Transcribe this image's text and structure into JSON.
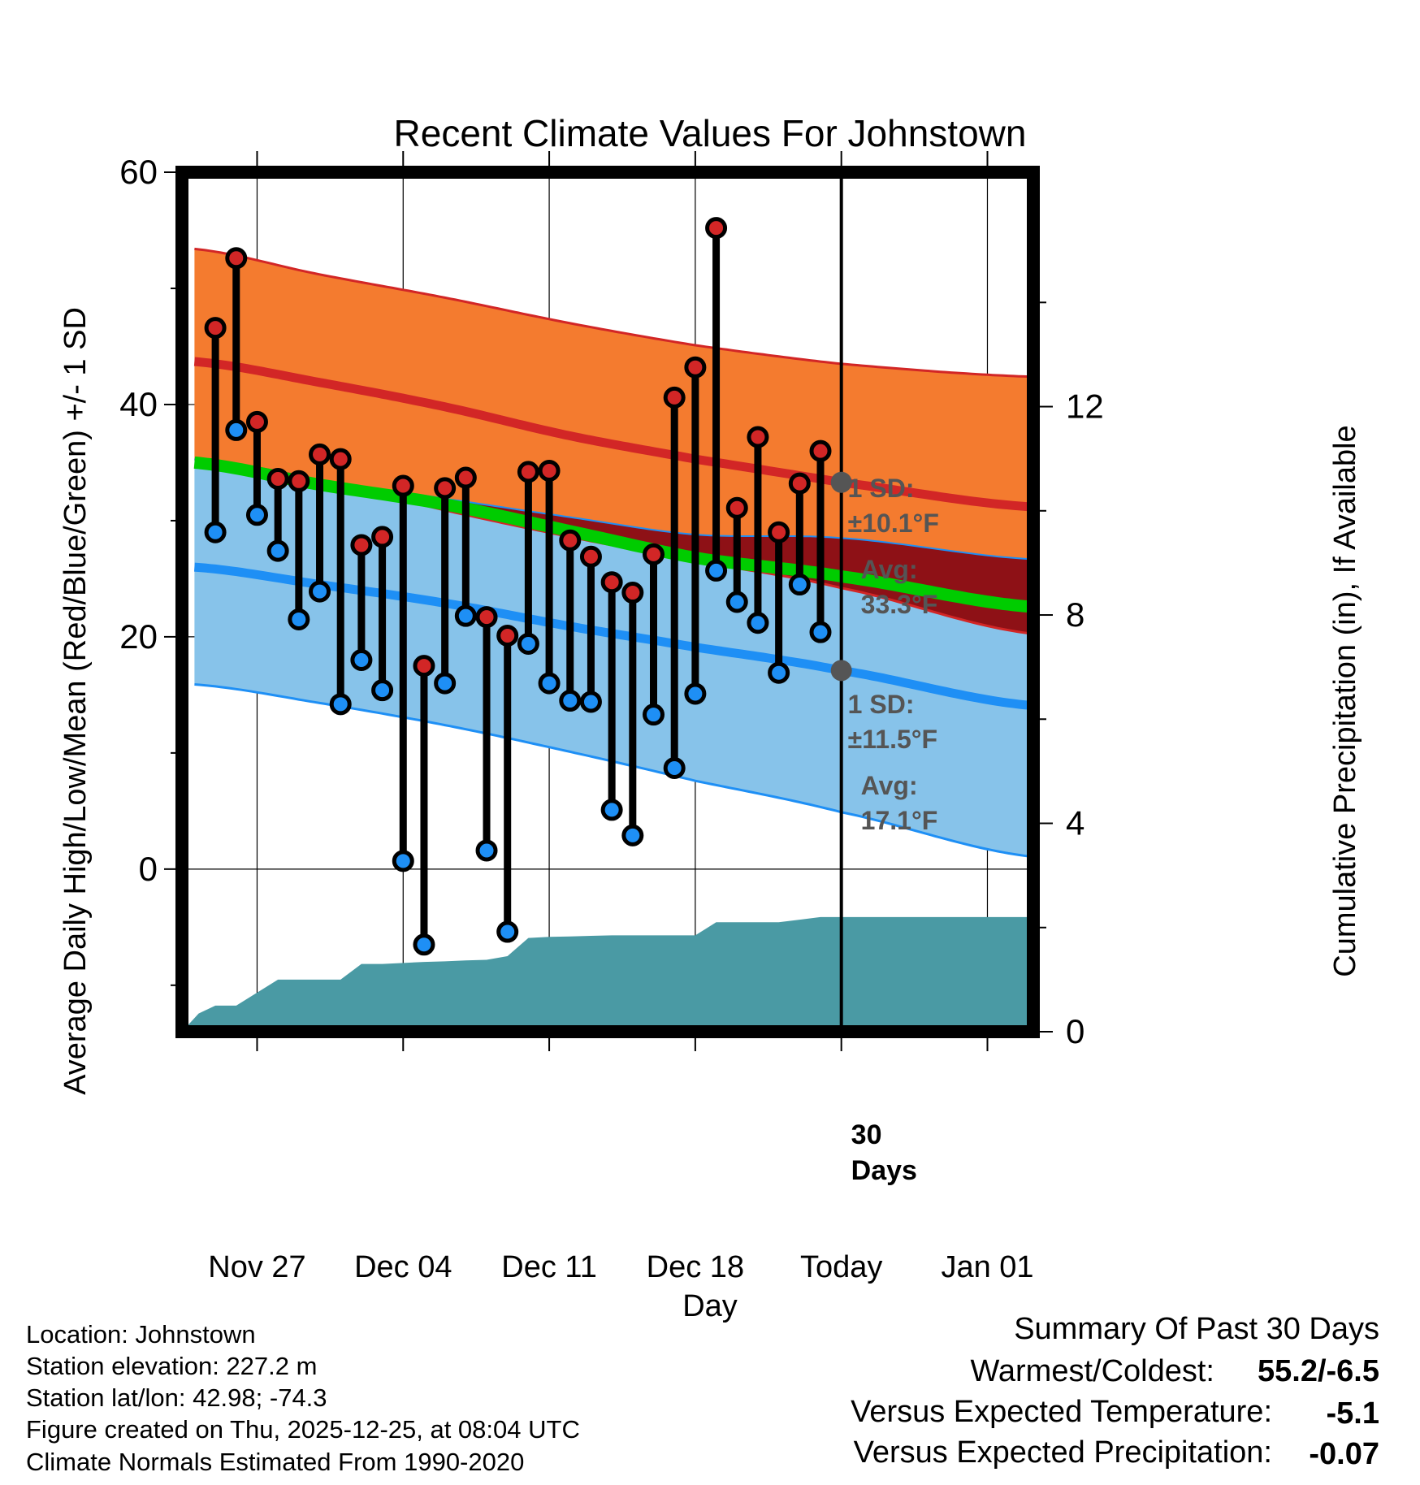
{
  "chart_data": {
    "type": "line",
    "title": "Recent Climate Values For Johnstown",
    "xlabel": "Day",
    "ylabel": "Average Daily High/Low/Mean (Red/Blue/Green) +/- 1 SD",
    "y2label": "Cumulative Precipitation (in), If Available",
    "ylim": [
      -14,
      60
    ],
    "y2lim": [
      0,
      16.5
    ],
    "xlim": [
      -3.6,
      37.2
    ],
    "yticks": [
      "60",
      "40",
      "20",
      "0"
    ],
    "y2ticks": [
      "12",
      "8",
      "4",
      "0"
    ],
    "xticks": [
      {
        "day": 0,
        "label": "Nov 27"
      },
      {
        "day": 7,
        "label": "Dec 04"
      },
      {
        "day": 14,
        "label": "Dec 11"
      },
      {
        "day": 21,
        "label": "Dec 18"
      },
      {
        "day": 28,
        "label": "Today"
      },
      {
        "day": 35,
        "label": "Jan 01"
      }
    ],
    "days": [
      -2,
      -1,
      0,
      1,
      2,
      3,
      4,
      5,
      6,
      7,
      8,
      9,
      10,
      11,
      12,
      13,
      14,
      15,
      16,
      17,
      18,
      19,
      20,
      21,
      22,
      23,
      24,
      25,
      26,
      27
    ],
    "highs": [
      46.6,
      52.6,
      38.5,
      33.6,
      33.4,
      35.7,
      35.3,
      27.9,
      28.6,
      33.0,
      17.5,
      32.8,
      33.7,
      21.7,
      20.1,
      34.2,
      34.3,
      28.3,
      26.9,
      24.7,
      23.8,
      27.1,
      40.6,
      43.2,
      55.2,
      31.1,
      37.2,
      29.0,
      33.2,
      36.0
    ],
    "lows": [
      29.0,
      37.8,
      30.5,
      27.4,
      21.5,
      23.9,
      14.2,
      18.0,
      15.4,
      0.7,
      -6.5,
      16.0,
      21.8,
      1.6,
      -5.4,
      19.4,
      16.0,
      14.5,
      14.4,
      5.1,
      2.9,
      13.3,
      8.7,
      15.1,
      25.7,
      23.0,
      21.2,
      16.9,
      24.5,
      20.4
    ],
    "normals": {
      "days": [
        -3,
        3,
        9,
        15,
        21,
        28,
        37
      ],
      "high_mean": [
        43.7,
        41.9,
        39.8,
        37.3,
        35.3,
        33.3,
        31.2
      ],
      "high_upper": [
        53.4,
        51.2,
        49.2,
        47.0,
        45.1,
        43.5,
        42.4
      ],
      "high_lower": [
        35.3,
        33.5,
        30.9,
        28.6,
        26.5,
        24.2,
        20.3
      ],
      "low_mean": [
        26.0,
        24.5,
        22.9,
        20.9,
        19.1,
        17.1,
        14.1
      ],
      "low_upper": [
        35.3,
        33.5,
        31.9,
        30.3,
        28.8,
        28.5,
        26.7
      ],
      "low_lower": [
        15.9,
        14.3,
        12.4,
        10.1,
        7.6,
        4.9,
        1.1
      ],
      "avg_mean": [
        35.0,
        33.1,
        31.4,
        29.1,
        26.8,
        25.2,
        22.6
      ]
    },
    "precip": {
      "days": [
        -3.6,
        -2.8,
        -2.0,
        -1.0,
        0.0,
        1.0,
        2.0,
        3.0,
        4.0,
        5.0,
        6.0,
        7.0,
        8.0,
        9.0,
        10.0,
        11.0,
        12.0,
        13.0,
        14.0,
        15.0,
        16.0,
        17.0,
        18.0,
        19.0,
        20.0,
        21.0,
        22.0,
        23.0,
        24.0,
        25.0,
        26.0,
        27.0,
        28.0,
        29.0,
        37.2
      ],
      "cumulative": [
        0.0,
        0.35,
        0.5,
        0.5,
        0.75,
        1.0,
        1.0,
        1.0,
        1.0,
        1.3,
        1.3,
        1.32,
        1.34,
        1.35,
        1.37,
        1.38,
        1.45,
        1.8,
        1.82,
        1.83,
        1.84,
        1.85,
        1.85,
        1.85,
        1.85,
        1.85,
        2.1,
        2.1,
        2.1,
        2.1,
        2.15,
        2.2,
        2.2,
        2.2,
        2.2
      ]
    },
    "annotations": {
      "high_sd_label": "1 SD:",
      "high_sd_value": "±10.1°F",
      "high_avg_label": "Avg:",
      "high_avg_value": "33.3°F",
      "low_sd_label": "1 SD:",
      "low_sd_value": "±11.5°F",
      "low_avg_label": "Avg:",
      "low_avg_value": "17.1°F",
      "days_label_1": "30",
      "days_label_2": "Days"
    }
  },
  "info": {
    "location": "Location: Johnstown",
    "elevation": "Station elevation: 227.2 m",
    "latlon": "Station lat/lon: 42.98; -74.3",
    "created": "Figure created on Thu, 2025-12-25, at 08:04 UTC",
    "normals": "Climate Normals Estimated From 1990-2020"
  },
  "summary": {
    "title": "Summary Of Past 30 Days",
    "warm_cold_label": "Warmest/Coldest:",
    "warm_cold_value": "55.2/-6.5",
    "temp_label": "Versus Expected Temperature:",
    "temp_value": "-5.1",
    "precip_label": "Versus Expected Precipitation:",
    "precip_value": "-0.07"
  },
  "colors": {
    "high_band": "#f47b2f",
    "high_line": "#d22626",
    "low_band": "#87c3ea",
    "low_line": "#1e8ff5",
    "mean_line": "#00cc00",
    "overlap_band": "#8e1116",
    "precip": "#4a9aa4",
    "temp_value": "#1e8ff5",
    "precip_value": "#a0522d",
    "annotation": "#555555"
  }
}
